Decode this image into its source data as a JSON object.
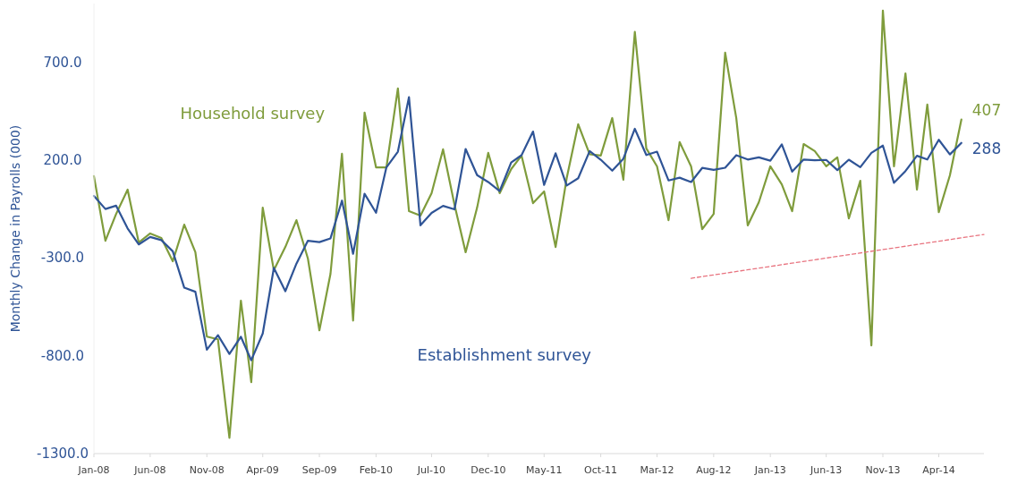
{
  "chart_data": {
    "type": "line",
    "ylabel": "Monthly Change in Payrolls (000)",
    "x": [
      "2008-01",
      "2008-02",
      "2008-03",
      "2008-04",
      "2008-05",
      "2008-06",
      "2008-07",
      "2008-08",
      "2008-09",
      "2008-10",
      "2008-11",
      "2008-12",
      "2009-01",
      "2009-02",
      "2009-03",
      "2009-04",
      "2009-05",
      "2009-06",
      "2009-07",
      "2009-08",
      "2009-09",
      "2009-10",
      "2009-11",
      "2009-12",
      "2010-01",
      "2010-02",
      "2010-03",
      "2010-04",
      "2010-05",
      "2010-06",
      "2010-07",
      "2010-08",
      "2010-09",
      "2010-10",
      "2010-11",
      "2010-12",
      "2011-01",
      "2011-02",
      "2011-03",
      "2011-04",
      "2011-05",
      "2011-06",
      "2011-07",
      "2011-08",
      "2011-09",
      "2011-10",
      "2011-11",
      "2011-12",
      "2012-01",
      "2012-02",
      "2012-03",
      "2012-04",
      "2012-05",
      "2012-06",
      "2012-07",
      "2012-08",
      "2012-09",
      "2012-10",
      "2012-11",
      "2012-12",
      "2013-01",
      "2013-02",
      "2013-03",
      "2013-04",
      "2013-05",
      "2013-06",
      "2013-07",
      "2013-08",
      "2013-09",
      "2013-10",
      "2013-11",
      "2013-12",
      "2014-01",
      "2014-02",
      "2014-03",
      "2014-04",
      "2014-05",
      "2014-06"
    ],
    "series": [
      {
        "name": "Household survey",
        "color": "#7f9c3c",
        "values": [
          118,
          -212,
          -75,
          49,
          -221,
          -175,
          -198,
          -317,
          -130,
          -271,
          -702,
          -716,
          -1219,
          -519,
          -935,
          -43,
          -363,
          -244,
          -107,
          -303,
          -670,
          -381,
          232,
          -620,
          443,
          163,
          163,
          566,
          -61,
          -84,
          31,
          255,
          -29,
          -271,
          -43,
          237,
          31,
          154,
          223,
          -20,
          40,
          -244,
          108,
          383,
          230,
          223,
          415,
          100,
          855,
          260,
          168,
          -107,
          292,
          168,
          -153,
          -75,
          749,
          415,
          -134,
          -15,
          168,
          76,
          -61,
          282,
          246,
          168,
          214,
          -98,
          94,
          -747,
          964,
          168,
          643,
          49,
          484,
          -66,
          122,
          407
        ],
        "value_labels": [
          null,
          null,
          null,
          null,
          null,
          null,
          null,
          null,
          null,
          null,
          null,
          null,
          null,
          null,
          null,
          null,
          null,
          null,
          null,
          null,
          null,
          null,
          null,
          null,
          null,
          null,
          null,
          null,
          null,
          null,
          null,
          null,
          null,
          null,
          null,
          null,
          null,
          null,
          null,
          null,
          null,
          null,
          null,
          null,
          null,
          null,
          null,
          null,
          null,
          null,
          null,
          null,
          null,
          null,
          null,
          null,
          null,
          null,
          null,
          null,
          null,
          null,
          null,
          null,
          null,
          null,
          null,
          null,
          null,
          null,
          null,
          null,
          null,
          null,
          null,
          null,
          null,
          "407"
        ]
      },
      {
        "name": "Establishment survey",
        "color": "#2f5496",
        "values": [
          17,
          -50,
          -33,
          -149,
          -231,
          -193,
          -209,
          -266,
          -452,
          -473,
          -769,
          -695,
          -791,
          -703,
          -823,
          -686,
          -351,
          -470,
          -329,
          -212,
          -219,
          -200,
          -7,
          -279,
          28,
          -69,
          163,
          243,
          522,
          -133,
          -70,
          -34,
          -52,
          257,
          123,
          88,
          42,
          188,
          225,
          346,
          73,
          235,
          70,
          107,
          246,
          202,
          146,
          207,
          360,
          226,
          243,
          96,
          110,
          88,
          160,
          150,
          161,
          225,
          203,
          214,
          197,
          280,
          141,
          203,
          199,
          201,
          149,
          202,
          164,
          237,
          274,
          84,
          144,
          222,
          203,
          304,
          229,
          288
        ],
        "value_labels": [
          null,
          null,
          null,
          null,
          null,
          null,
          null,
          null,
          null,
          null,
          null,
          null,
          null,
          null,
          null,
          null,
          null,
          null,
          null,
          null,
          null,
          null,
          null,
          null,
          null,
          null,
          null,
          null,
          null,
          null,
          null,
          null,
          null,
          null,
          null,
          null,
          null,
          null,
          null,
          null,
          null,
          null,
          null,
          null,
          null,
          null,
          null,
          null,
          null,
          null,
          null,
          null,
          null,
          null,
          null,
          null,
          null,
          null,
          null,
          null,
          null,
          null,
          null,
          null,
          null,
          null,
          null,
          null,
          null,
          null,
          null,
          null,
          null,
          null,
          null,
          null,
          null,
          "288"
        ]
      },
      {
        "type": "line",
        "color": "#e8737f",
        "line_style": "dashed",
        "x": [
          "2012-06",
          "2014-08"
        ],
        "values": [
          -404,
          -180
        ]
      }
    ],
    "xlim": [
      "2008-01",
      "2014-08"
    ],
    "xticks": [
      {
        "value": "2008-01",
        "label": "Jan-08"
      },
      {
        "value": "2008-06",
        "label": "Jun-08"
      },
      {
        "value": "2008-11",
        "label": "Nov-08"
      },
      {
        "value": "2009-04",
        "label": "Apr-09"
      },
      {
        "value": "2009-09",
        "label": "Sep-09"
      },
      {
        "value": "2010-02",
        "label": "Feb-10"
      },
      {
        "value": "2010-07",
        "label": "Jul-10"
      },
      {
        "value": "2010-12",
        "label": "Dec-10"
      },
      {
        "value": "2011-05",
        "label": "May-11"
      },
      {
        "value": "2011-10",
        "label": "Oct-11"
      },
      {
        "value": "2012-03",
        "label": "Mar-12"
      },
      {
        "value": "2012-08",
        "label": "Aug-12"
      },
      {
        "value": "2013-01",
        "label": "Jan-13"
      },
      {
        "value": "2013-06",
        "label": "Jun-13"
      },
      {
        "value": "2013-11",
        "label": "Nov-13"
      },
      {
        "value": "2014-04",
        "label": "Apr-14"
      }
    ],
    "ylim": [
      -1300,
      1000
    ],
    "yticks": [
      {
        "value": 700,
        "label": "700.0"
      },
      {
        "value": 200,
        "label": "200.0"
      },
      {
        "value": -300,
        "label": "-300.0"
      },
      {
        "value": -800,
        "label": "-800.0"
      },
      {
        "value": -1300,
        "label": "-1300.0"
      }
    ],
    "grid": false,
    "marker": "none",
    "line_style": "solid"
  }
}
